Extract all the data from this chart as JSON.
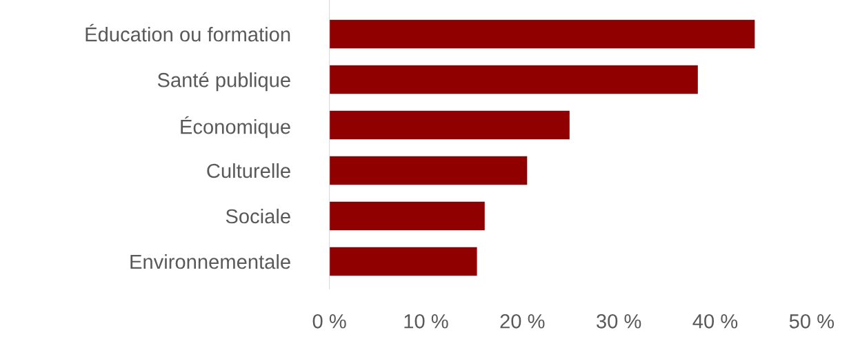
{
  "chart_data": {
    "type": "bar",
    "orientation": "horizontal",
    "categories": [
      "Éducation ou formation",
      "Santé publique",
      "Économique",
      "Culturelle",
      "Sociale",
      "Environnementale"
    ],
    "values": [
      44.1,
      38.2,
      24.9,
      20.5,
      16.1,
      15.3
    ],
    "color": "#900000",
    "xlim": [
      0,
      50
    ],
    "xticks": [
      {
        "value": 0,
        "label": "0 %"
      },
      {
        "value": 10,
        "label": "10 %"
      },
      {
        "value": 20,
        "label": "20 %"
      },
      {
        "value": 30,
        "label": "30 %"
      },
      {
        "value": 40,
        "label": "40 %"
      },
      {
        "value": 50,
        "label": "50 %"
      }
    ],
    "grid": false
  }
}
